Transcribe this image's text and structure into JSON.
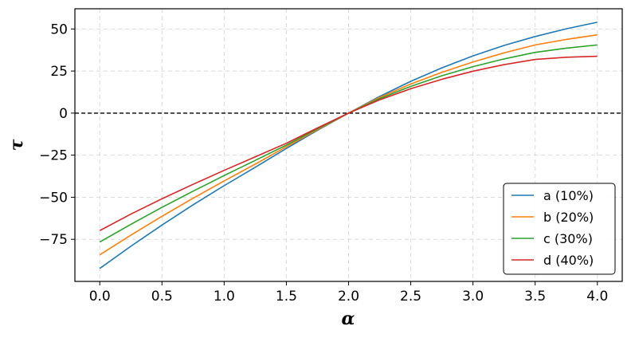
{
  "chart_data": {
    "type": "line",
    "xlabel": "α",
    "ylabel": "τ",
    "xlim": [
      -0.2,
      4.2
    ],
    "ylim": [
      -100,
      62
    ],
    "xticks": [
      "0.0",
      "0.5",
      "1.0",
      "1.5",
      "2.0",
      "2.5",
      "3.0",
      "3.5",
      "4.0"
    ],
    "yticks": [
      "−75",
      "−50",
      "−25",
      "0",
      "25",
      "50"
    ],
    "xtick_values": [
      0,
      0.5,
      1,
      1.5,
      2,
      2.5,
      3,
      3.5,
      4
    ],
    "ytick_values": [
      -75,
      -50,
      -25,
      0,
      25,
      50
    ],
    "grid": true,
    "grid_style": "dashed",
    "reference_line": {
      "y": 0,
      "style": "dashed",
      "color": "#000000"
    },
    "legend_position": "lower-right",
    "x": [
      0,
      0.25,
      0.5,
      0.75,
      1,
      1.25,
      1.5,
      1.75,
      2,
      2.25,
      2.5,
      2.75,
      3,
      3.25,
      3.5,
      3.75,
      4
    ],
    "series": [
      {
        "name": "a (10%)",
        "color": "#1f77b4",
        "values": [
          -92.3,
          -79.1,
          -66.5,
          -54.5,
          -43.1,
          -32.2,
          -21.0,
          -10.2,
          0.0,
          9.9,
          18.9,
          26.9,
          34.0,
          40.2,
          45.5,
          50.1,
          54.0
        ]
      },
      {
        "name": "b (20%)",
        "color": "#ff7f0e",
        "values": [
          -84.2,
          -72.5,
          -61.3,
          -50.6,
          -40.3,
          -30.3,
          -20.0,
          -9.8,
          0.0,
          9.3,
          17.3,
          24.2,
          30.4,
          35.8,
          40.5,
          43.8,
          46.5
        ]
      },
      {
        "name": "c (30%)",
        "color": "#2ca02c",
        "values": [
          -76.6,
          -66.1,
          -56.0,
          -46.4,
          -37.1,
          -28.1,
          -19.0,
          -9.3,
          0.0,
          8.6,
          15.9,
          22.2,
          27.6,
          32.2,
          36.1,
          38.6,
          40.5
        ]
      },
      {
        "name": "d (40%)",
        "color": "#d62728",
        "values": [
          -69.8,
          -60.0,
          -50.9,
          -42.3,
          -34.0,
          -26.0,
          -17.9,
          -8.8,
          0.0,
          7.9,
          14.5,
          20.1,
          24.9,
          28.8,
          31.9,
          33.2,
          33.8
        ]
      }
    ]
  }
}
